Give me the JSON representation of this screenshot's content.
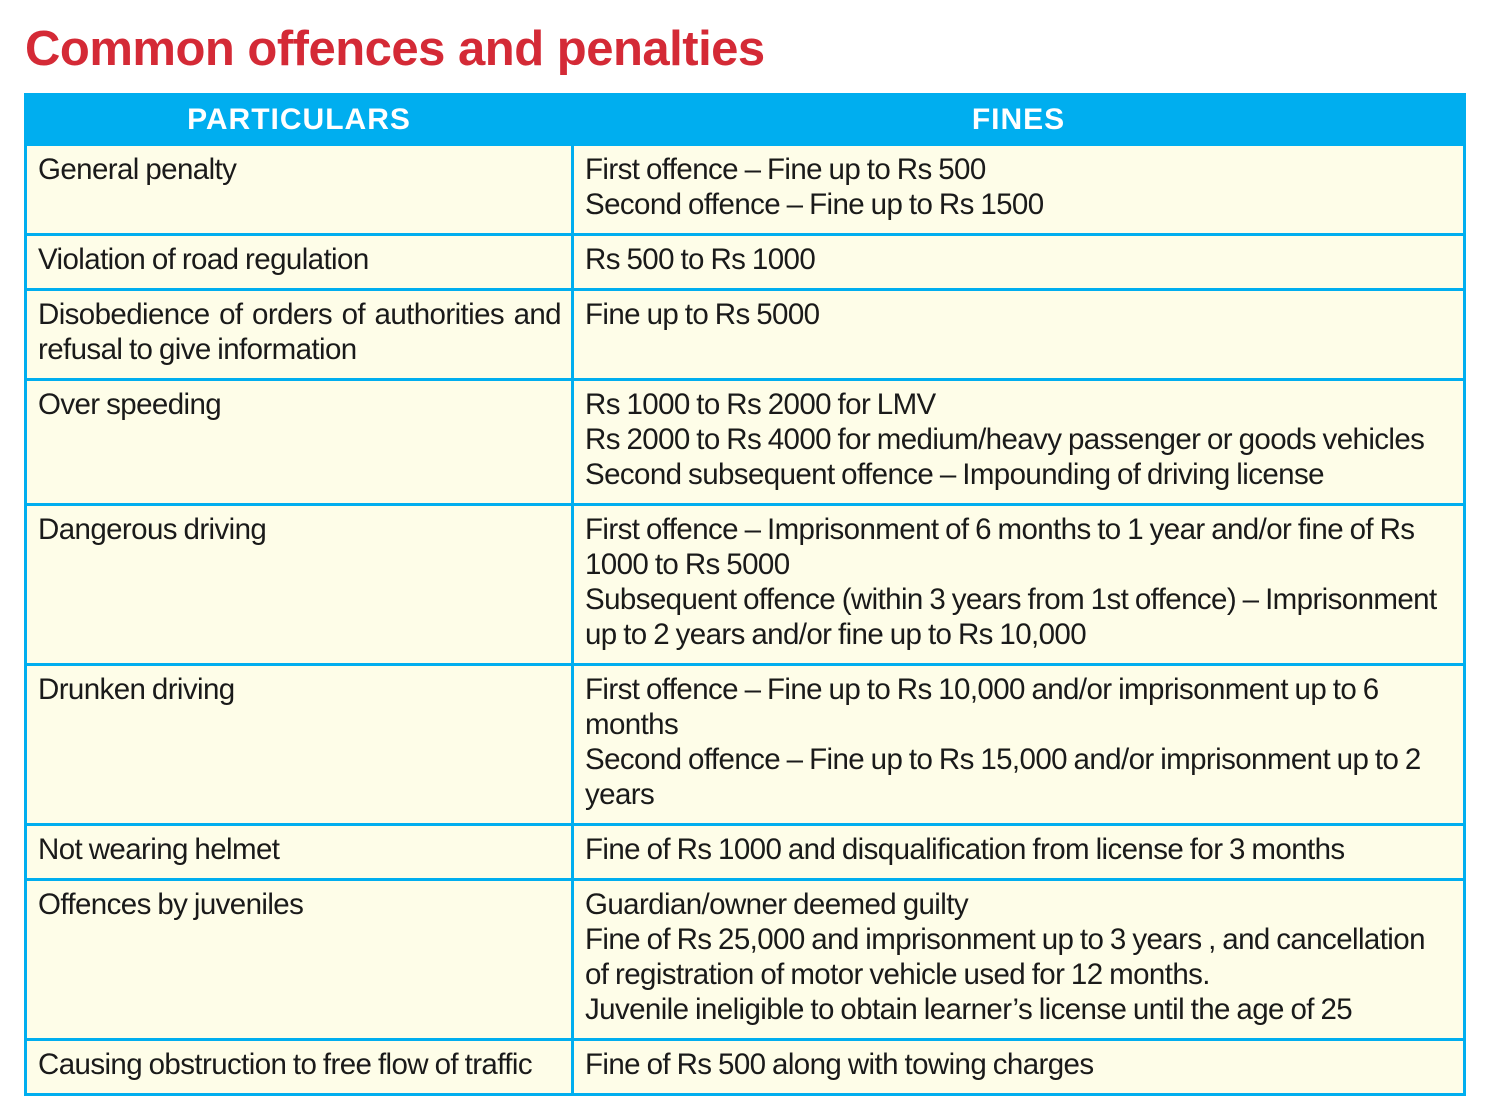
{
  "title": "Common offences and penalties",
  "table": {
    "headers": {
      "particulars": "PARTICULARS",
      "fines": "FINES"
    },
    "rows": [
      {
        "particular": "General penalty",
        "fines": [
          "First offence – Fine up to Rs 500",
          "Second offence – Fine up to Rs 1500"
        ]
      },
      {
        "particular": "Violation of road regulation",
        "fines": [
          "Rs 500 to Rs 1000"
        ]
      },
      {
        "particular": "Disobedience of orders of authorities and refusal to give information",
        "fines": [
          "Fine up to Rs 5000"
        ]
      },
      {
        "particular": "Over speeding",
        "fines": [
          "Rs 1000 to Rs 2000 for LMV",
          "Rs 2000 to Rs 4000 for medium/heavy passenger or goods vehicles",
          "Second subsequent offence – Impounding of driving license"
        ]
      },
      {
        "particular": "Dangerous driving",
        "fines": [
          "First offence – Imprisonment of 6 months to 1 year and/or fine of Rs 1000 to Rs 5000",
          "Subsequent offence (within 3 years from 1st offence) – Imprisonment up to 2 years and/or fine up to Rs 10,000"
        ]
      },
      {
        "particular": "Drunken driving",
        "fines": [
          "First offence – Fine up to Rs 10,000 and/or imprisonment up to 6 months",
          "Second offence – Fine up to Rs 15,000 and/or imprisonment up to 2 years"
        ]
      },
      {
        "particular": "Not wearing helmet",
        "fines": [
          "Fine of Rs 1000 and disqualification from license for 3 months"
        ]
      },
      {
        "particular": "Offences by juveniles",
        "fines": [
          "Guardian/owner deemed guilty",
          "Fine of Rs 25,000 and imprisonment up to 3 years , and cancellation of registration of motor vehicle used for 12 months.",
          "Juvenile ineligible to obtain learner’s license until the age of 25"
        ]
      },
      {
        "particular": "Causing obstruction to free flow of traffic",
        "fines": [
          "Fine of Rs 500 along with towing charges"
        ]
      }
    ]
  }
}
